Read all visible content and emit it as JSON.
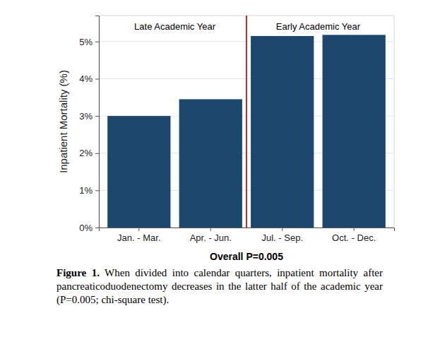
{
  "chart_data": {
    "type": "bar",
    "categories": [
      "Jan. - Mar.",
      "Apr. - Jun.",
      "Jul. - Sep.",
      "Oct. - Dec."
    ],
    "values": [
      3.0,
      3.45,
      5.15,
      5.18
    ],
    "color": "#1c476f",
    "y_label": "Inpatient Mortality (%)",
    "x_label": "Overall P=0.005",
    "ylim": [
      0,
      5.7
    ],
    "yticks": [
      {
        "value": 0,
        "label": "0%"
      },
      {
        "value": 1,
        "label": "1%"
      },
      {
        "value": 2,
        "label": "2%"
      },
      {
        "value": 3,
        "label": "3%"
      },
      {
        "value": 4,
        "label": "4%"
      },
      {
        "value": 5,
        "label": "5%"
      }
    ],
    "grid": true,
    "annotations": [
      {
        "text": "Late Academic Year",
        "categories": [
          "Jan. - Mar.",
          "Apr. - Jun."
        ]
      },
      {
        "text": "Early Academic Year",
        "categories": [
          "Jul. - Sep.",
          "Oct. - Dec."
        ]
      }
    ],
    "figure_label": "Figure 1.",
    "caption": "When divided into calendar quarters, inpatient mortality after pancreaticoduodenectomy decreases in the latter half of the academic year (P=0.005; chi-square test)."
  }
}
